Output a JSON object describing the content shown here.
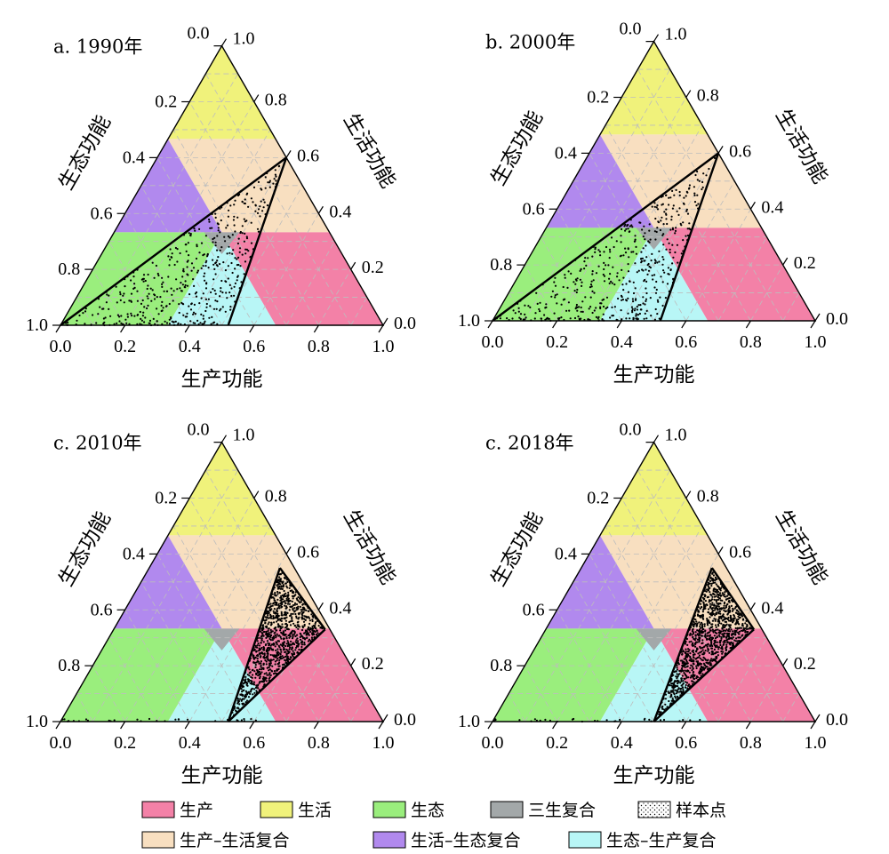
{
  "colors": {
    "production": "#f381a7",
    "living": "#f0f27b",
    "ecology": "#9aee7d",
    "triple": "#a3a8a9",
    "prod_living": "#f8dfc0",
    "living_eco": "#b189ee",
    "eco_prod": "#b8f6f6",
    "grid": "#bdbdbd"
  },
  "chart_data": [
    {
      "type": "scatter",
      "title": "a. 1990年",
      "xlabel": "生产功能",
      "left_label": "生态功能",
      "right_label": "生活功能",
      "left_ticks": [
        "0.0",
        "0.2",
        "0.4",
        "0.6",
        "0.8",
        "1.0"
      ],
      "right_ticks": [
        "1.0",
        "0.8",
        "0.6",
        "0.4",
        "0.2",
        "0.0"
      ],
      "bottom_ticks": [
        "0.0",
        "0.2",
        "0.4",
        "0.6",
        "0.8",
        "1.0"
      ],
      "sample_hull": [
        [
          0.0,
          0.0
        ],
        [
          0.52,
          0.0
        ],
        [
          0.7,
          0.6
        ]
      ],
      "sample_lines": [
        [
          [
            0.0,
            0.0
          ],
          [
            0.7,
            0.6
          ]
        ],
        [
          [
            0.52,
            0.0
          ],
          [
            0.7,
            0.6
          ]
        ]
      ],
      "point_count": 450
    },
    {
      "type": "scatter",
      "title": "b. 2000年",
      "xlabel": "生产功能",
      "left_label": "生态功能",
      "right_label": "生活功能",
      "left_ticks": [
        "0.0",
        "0.2",
        "0.4",
        "0.6",
        "0.8",
        "1.0"
      ],
      "right_ticks": [
        "1.0",
        "0.8",
        "0.6",
        "0.4",
        "0.2",
        "0.0"
      ],
      "bottom_ticks": [
        "0.0",
        "0.2",
        "0.4",
        "0.6",
        "0.8",
        "1.0"
      ],
      "sample_hull": [
        [
          0.0,
          0.0
        ],
        [
          0.52,
          0.0
        ],
        [
          0.7,
          0.6
        ]
      ],
      "sample_lines": [
        [
          [
            0.0,
            0.0
          ],
          [
            0.7,
            0.6
          ]
        ],
        [
          [
            0.52,
            0.0
          ],
          [
            0.7,
            0.6
          ]
        ]
      ],
      "point_count": 450
    },
    {
      "type": "scatter",
      "title": "c. 2010年",
      "xlabel": "生产功能",
      "left_label": "生态功能",
      "right_label": "生活功能",
      "left_ticks": [
        "0.0",
        "0.2",
        "0.4",
        "0.6",
        "0.8",
        "1.0"
      ],
      "right_ticks": [
        "1.0",
        "0.8",
        "0.6",
        "0.4",
        "0.2",
        "0.0"
      ],
      "bottom_ticks": [
        "0.0",
        "0.2",
        "0.4",
        "0.6",
        "0.8",
        "1.0"
      ],
      "sample_hull": [
        [
          0.52,
          0.0
        ],
        [
          0.68,
          0.55
        ],
        [
          0.82,
          0.33
        ]
      ],
      "sample_lines": [
        [
          [
            0.52,
            0.0
          ],
          [
            0.68,
            0.55
          ]
        ],
        [
          [
            0.68,
            0.55
          ],
          [
            0.82,
            0.33
          ]
        ],
        [
          [
            0.82,
            0.33
          ],
          [
            0.52,
            0.0
          ]
        ]
      ],
      "point_count": 1100
    },
    {
      "type": "scatter",
      "title": "c. 2018年",
      "xlabel": "生产功能",
      "left_label": "生态功能",
      "right_label": "生活功能",
      "left_ticks": [
        "0.0",
        "0.2",
        "0.4",
        "0.6",
        "0.8",
        "1.0"
      ],
      "right_ticks": [
        "1.0",
        "0.8",
        "0.6",
        "0.4",
        "0.2",
        "0.0"
      ],
      "bottom_ticks": [
        "0.0",
        "0.2",
        "0.4",
        "0.6",
        "0.8",
        "1.0"
      ],
      "sample_hull": [
        [
          0.5,
          0.0
        ],
        [
          0.68,
          0.55
        ],
        [
          0.81,
          0.33
        ]
      ],
      "sample_lines": [
        [
          [
            0.5,
            0.0
          ],
          [
            0.68,
            0.55
          ]
        ],
        [
          [
            0.68,
            0.55
          ],
          [
            0.81,
            0.33
          ]
        ],
        [
          [
            0.81,
            0.33
          ],
          [
            0.5,
            0.0
          ]
        ]
      ],
      "point_count": 1150
    }
  ],
  "zones": [
    {
      "key": "living",
      "poly": [
        [
          0.333,
          0.667
        ],
        [
          0.5,
          1.0
        ],
        [
          0.667,
          0.667
        ]
      ]
    },
    {
      "key": "prod_living",
      "poly": [
        [
          0.5,
          0.333
        ],
        [
          0.333,
          0.667
        ],
        [
          0.667,
          0.667
        ],
        [
          0.833,
          0.333
        ]
      ]
    },
    {
      "key": "living_eco",
      "poly": [
        [
          0.167,
          0.333
        ],
        [
          0.333,
          0.667
        ],
        [
          0.5,
          0.333
        ]
      ]
    },
    {
      "key": "triple",
      "poly": [
        [
          0.5,
          0.333
        ],
        [
          0.333,
          0.333
        ],
        [
          0.5,
          0.333
        ]
      ]
    },
    {
      "key": "production",
      "poly": [
        [
          0.5,
          0.333
        ],
        [
          0.667,
          0.0
        ],
        [
          1.0,
          0.0
        ],
        [
          0.833,
          0.333
        ]
      ]
    },
    {
      "key": "ecology",
      "poly": [
        [
          0.0,
          0.0
        ],
        [
          0.333,
          0.0
        ],
        [
          0.5,
          0.333
        ],
        [
          0.167,
          0.333
        ]
      ]
    },
    {
      "key": "eco_prod",
      "poly": [
        [
          0.333,
          0.0
        ],
        [
          0.667,
          0.0
        ],
        [
          0.5,
          0.333
        ]
      ]
    }
  ],
  "legend": {
    "row1": [
      {
        "key": "production",
        "label": "生产"
      },
      {
        "key": "living",
        "label": "生活"
      },
      {
        "key": "ecology",
        "label": "生态"
      },
      {
        "key": "triple",
        "label": "三生复合"
      },
      {
        "key": "sample",
        "label": "样本点"
      }
    ],
    "row2": [
      {
        "key": "prod_living",
        "label": "生产–生活复合"
      },
      {
        "key": "living_eco",
        "label": "生活–生态复合"
      },
      {
        "key": "eco_prod",
        "label": "生态–生产复合"
      }
    ]
  }
}
